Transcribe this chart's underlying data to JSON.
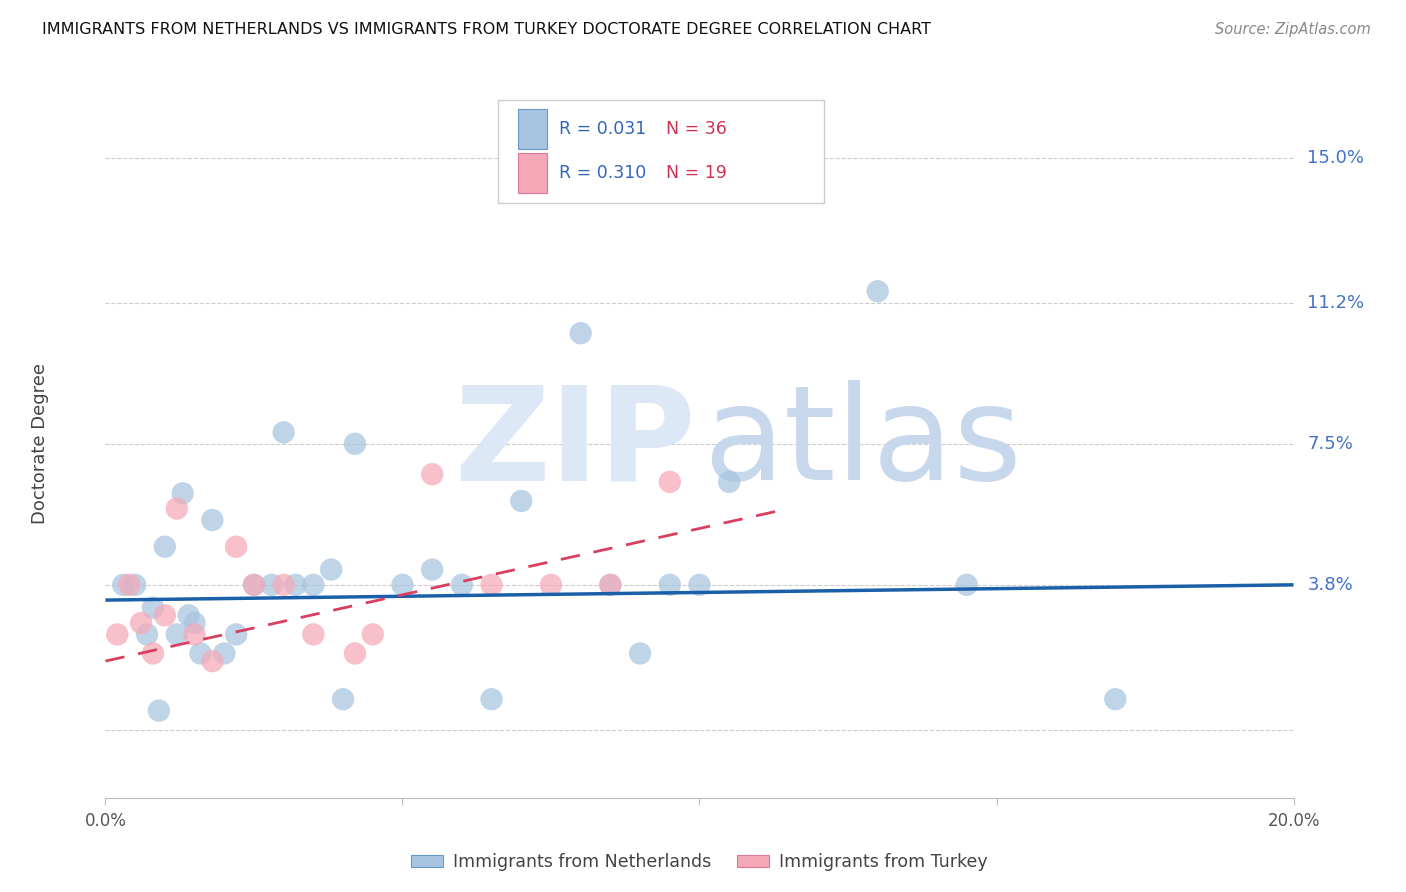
{
  "title": "IMMIGRANTS FROM NETHERLANDS VS IMMIGRANTS FROM TURKEY DOCTORATE DEGREE CORRELATION CHART",
  "source": "Source: ZipAtlas.com",
  "ylabel": "Doctorate Degree",
  "ytick_values": [
    0.0,
    0.038,
    0.075,
    0.112,
    0.15
  ],
  "ytick_labels": [
    "",
    "3.8%",
    "7.5%",
    "11.2%",
    "15.0%"
  ],
  "xlim": [
    0.0,
    0.2
  ],
  "ylim": [
    -0.018,
    0.168
  ],
  "nl_color": "#a8c4e0",
  "tr_color": "#f4a8b8",
  "nl_line_color": "#1a5faa",
  "tr_line_color": "#d94060",
  "background_color": "#ffffff",
  "nl_scatter_x": [
    0.003,
    0.005,
    0.007,
    0.008,
    0.009,
    0.01,
    0.012,
    0.013,
    0.014,
    0.015,
    0.016,
    0.018,
    0.02,
    0.022,
    0.025,
    0.028,
    0.03,
    0.032,
    0.035,
    0.038,
    0.04,
    0.042,
    0.05,
    0.055,
    0.06,
    0.065,
    0.07,
    0.08,
    0.085,
    0.09,
    0.095,
    0.1,
    0.105,
    0.13,
    0.145,
    0.17
  ],
  "nl_scatter_y": [
    0.038,
    0.038,
    0.025,
    0.032,
    0.005,
    0.048,
    0.025,
    0.062,
    0.03,
    0.028,
    0.02,
    0.055,
    0.02,
    0.025,
    0.038,
    0.038,
    0.078,
    0.038,
    0.038,
    0.042,
    0.008,
    0.075,
    0.038,
    0.042,
    0.038,
    0.008,
    0.06,
    0.104,
    0.038,
    0.02,
    0.038,
    0.038,
    0.065,
    0.115,
    0.038,
    0.008
  ],
  "tr_scatter_x": [
    0.002,
    0.004,
    0.006,
    0.008,
    0.01,
    0.012,
    0.015,
    0.018,
    0.022,
    0.025,
    0.03,
    0.035,
    0.042,
    0.045,
    0.055,
    0.065,
    0.075,
    0.085,
    0.095
  ],
  "tr_scatter_y": [
    0.025,
    0.038,
    0.028,
    0.02,
    0.03,
    0.058,
    0.025,
    0.018,
    0.048,
    0.038,
    0.038,
    0.025,
    0.02,
    0.025,
    0.067,
    0.038,
    0.038,
    0.038,
    0.065
  ],
  "nl_line_x": [
    0.0,
    0.2
  ],
  "nl_line_y": [
    0.034,
    0.038
  ],
  "tr_line_x": [
    0.0,
    0.115
  ],
  "tr_line_y": [
    0.018,
    0.058
  ],
  "nl_R": 0.031,
  "nl_N": 36,
  "tr_R": 0.31,
  "tr_N": 19
}
